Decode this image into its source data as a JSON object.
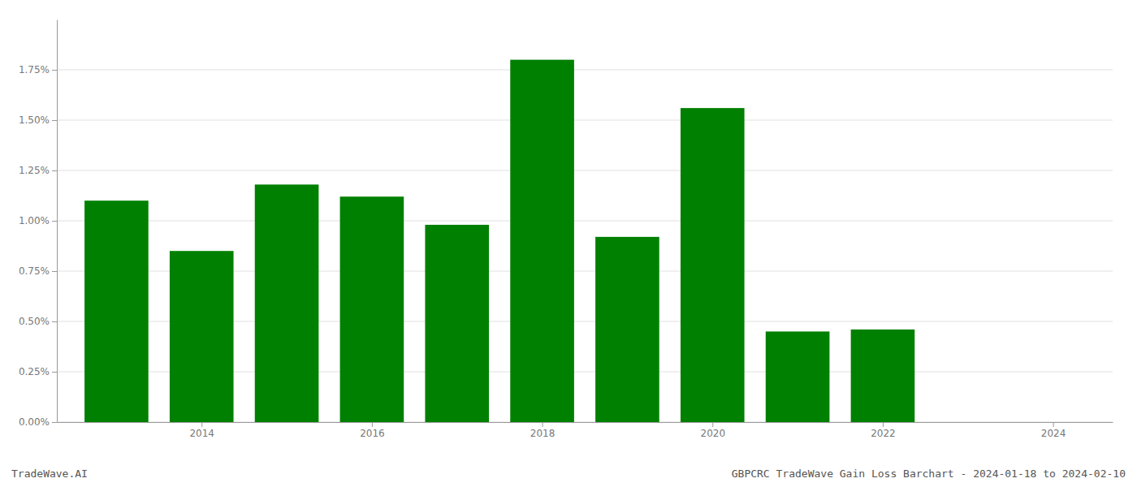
{
  "chart_data": {
    "type": "bar",
    "x": [
      2013,
      2014,
      2015,
      2016,
      2017,
      2018,
      2019,
      2020,
      2021,
      2022,
      2023
    ],
    "values": [
      0.011,
      0.0085,
      0.0118,
      0.0112,
      0.0098,
      0.018,
      0.0092,
      0.0156,
      0.0045,
      0.0046,
      0.0
    ],
    "color": "#008000",
    "xlim": [
      2012.3,
      2024.7
    ],
    "xticks": [
      2014,
      2016,
      2018,
      2020,
      2022,
      2024
    ],
    "ylim": [
      0,
      0.02
    ],
    "yticks": [
      {
        "value": 0.0,
        "label": "0.00%"
      },
      {
        "value": 0.0025,
        "label": "0.25%"
      },
      {
        "value": 0.005,
        "label": "0.50%"
      },
      {
        "value": 0.0075,
        "label": "0.75%"
      },
      {
        "value": 0.01,
        "label": "1.00%"
      },
      {
        "value": 0.0125,
        "label": "1.25%"
      },
      {
        "value": 0.015,
        "label": "1.50%"
      },
      {
        "value": 0.0175,
        "label": "1.75%"
      }
    ],
    "grid": true,
    "annotations": [
      "TradeWave.AI",
      "GBPCRC TradeWave Gain Loss Barchart - 2024-01-18 to 2024-02-10"
    ]
  }
}
